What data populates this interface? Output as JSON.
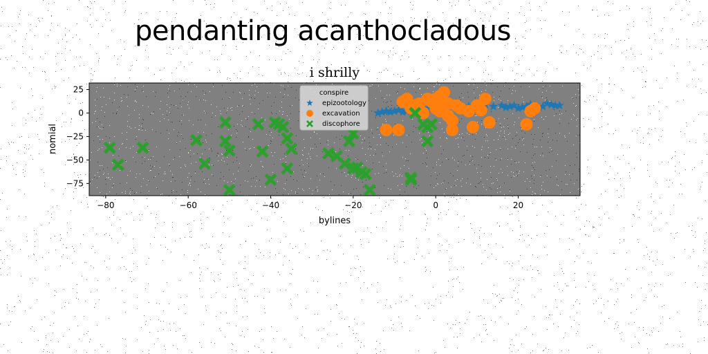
{
  "figure": {
    "suptitle": "pendanting acanthocladous"
  },
  "chart_data": {
    "type": "scatter",
    "title": "i shrilly",
    "xlabel": "bylines",
    "ylabel": "nomial",
    "xlim": [
      -84,
      35
    ],
    "ylim": [
      -88,
      32
    ],
    "xticks": [
      -80,
      -60,
      -40,
      -20,
      0,
      20
    ],
    "yticks": [
      25,
      0,
      -25,
      -50,
      -75
    ],
    "grid": false,
    "plot_background": "#808080",
    "legend": {
      "title": "conspire",
      "placement": "top-center"
    },
    "series": [
      {
        "name": "epizootology",
        "marker": "star",
        "color": "#1f77b4",
        "x": [
          -14,
          -13,
          -12,
          -11,
          -10,
          -9,
          -8,
          -7,
          -6,
          -5,
          -4,
          -3,
          -2,
          0,
          2,
          4,
          6,
          8,
          10,
          12,
          14,
          16,
          17,
          18,
          19,
          20,
          21,
          22,
          23,
          24,
          25,
          26,
          27,
          28,
          29,
          30
        ],
        "y": [
          0,
          1,
          2,
          1,
          2,
          3,
          1,
          2,
          2,
          3,
          4,
          5,
          4,
          6,
          5,
          7,
          6,
          7,
          8,
          9,
          7,
          8,
          6,
          7,
          8,
          5,
          6,
          7,
          9,
          8,
          6,
          7,
          10,
          9,
          8,
          8
        ]
      },
      {
        "name": "excavation",
        "marker": "circle",
        "color": "#ff7f0e",
        "x": [
          -12,
          -9,
          -8,
          -7,
          -6,
          -5,
          -4,
          -3,
          -2,
          -1,
          0,
          0,
          1,
          1,
          2,
          2,
          3,
          3,
          4,
          4,
          5,
          6,
          8,
          9,
          10,
          11,
          12,
          13,
          22,
          23,
          24
        ],
        "y": [
          -18,
          -18,
          12,
          15,
          5,
          8,
          10,
          0,
          15,
          12,
          5,
          15,
          18,
          2,
          22,
          10,
          -3,
          10,
          -8,
          -18,
          8,
          5,
          2,
          -15,
          8,
          3,
          15,
          -10,
          -12,
          2,
          5
        ]
      },
      {
        "name": "discophore",
        "marker": "x",
        "color": "#2ca02c",
        "x": [
          -79,
          -77,
          -71,
          -58,
          -56,
          -51,
          -51,
          -50,
          -50,
          -43,
          -42,
          -40,
          -39,
          -38,
          -37,
          -36,
          -36,
          -35,
          -26,
          -24,
          -22,
          -21,
          -20,
          -20,
          -19,
          -18,
          -17,
          -16,
          -6,
          -6,
          -5,
          -3,
          -2,
          -2,
          -1
        ],
        "y": [
          -37,
          -55,
          -37,
          -29,
          -54,
          -10,
          -30,
          -40,
          -82,
          -12,
          -41,
          -71,
          -10,
          -12,
          -15,
          -27,
          -59,
          -38,
          -43,
          -46,
          -54,
          -30,
          -22,
          -59,
          -58,
          -63,
          -65,
          -82,
          -69,
          -71,
          0,
          -12,
          -15,
          -30,
          -12
        ]
      }
    ]
  }
}
